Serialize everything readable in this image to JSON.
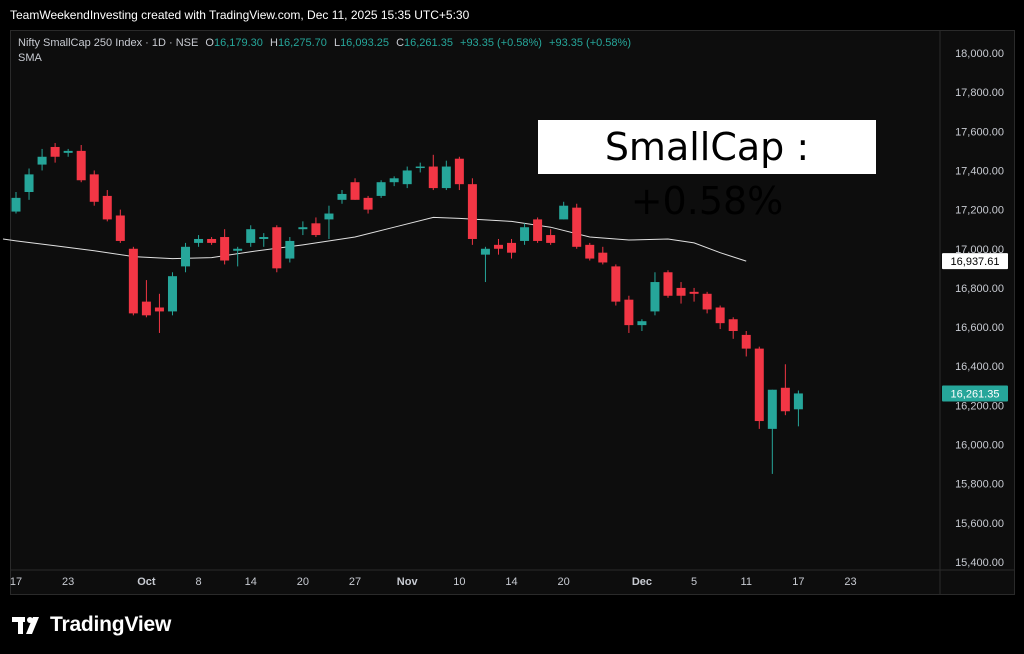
{
  "header": {
    "text": "TeamWeekendInvesting created with TradingView.com, Dec 11, 2025 15:35 UTC+5:30"
  },
  "legend": {
    "symbol": "Nifty SmallCap 250 Index · 1D · NSE",
    "o_label": "O",
    "o_value": "16,179.30",
    "h_label": "H",
    "h_value": "16,275.70",
    "l_label": "L",
    "l_value": "16,093.25",
    "c_label": "C",
    "c_value": "16,261.35",
    "change1": "+93.35 (+0.58%)",
    "change2": "+93.35 (+0.58%)",
    "indicator": "SMA"
  },
  "annotation": {
    "text": "SmallCap : +0.58%"
  },
  "footer": {
    "brand": "TradingView"
  },
  "colors": {
    "up": "#26a69a",
    "down": "#f23645",
    "sma": "#e0e0e0",
    "background": "#0d0d0d",
    "axis_text": "#c8cbd2"
  },
  "chart_data": {
    "type": "candlestick",
    "y_range": [
      15360,
      18100
    ],
    "y_ticks": [
      "18,000.00",
      "17,800.00",
      "17,600.00",
      "17,400.00",
      "17,200.00",
      "17,000.00",
      "16,800.00",
      "16,600.00",
      "16,400.00",
      "16,200.00",
      "16,000.00",
      "15,800.00",
      "15,600.00",
      "15,400.00"
    ],
    "y_tick_values": [
      18000,
      17800,
      17600,
      17400,
      17200,
      17000,
      16800,
      16600,
      16400,
      16200,
      16000,
      15800,
      15600,
      15400
    ],
    "x_ticks": [
      {
        "label": "17",
        "index": 0
      },
      {
        "label": "23",
        "index": 4
      },
      {
        "label": "Oct",
        "index": 10,
        "bold": true
      },
      {
        "label": "8",
        "index": 14
      },
      {
        "label": "14",
        "index": 18
      },
      {
        "label": "20",
        "index": 22
      },
      {
        "label": "27",
        "index": 26
      },
      {
        "label": "Nov",
        "index": 30,
        "bold": true
      },
      {
        "label": "10",
        "index": 34
      },
      {
        "label": "14",
        "index": 38
      },
      {
        "label": "20",
        "index": 42
      },
      {
        "label": "Dec",
        "index": 48,
        "bold": true
      },
      {
        "label": "5",
        "index": 52
      },
      {
        "label": "11",
        "index": 56
      },
      {
        "label": "17",
        "index": 60
      },
      {
        "label": "23",
        "index": 64
      }
    ],
    "candles": [
      {
        "o": 17190,
        "h": 17290,
        "l": 17180,
        "c": 17260
      },
      {
        "o": 17290,
        "h": 17410,
        "l": 17250,
        "c": 17380
      },
      {
        "o": 17430,
        "h": 17510,
        "l": 17400,
        "c": 17470
      },
      {
        "o": 17520,
        "h": 17540,
        "l": 17440,
        "c": 17470
      },
      {
        "o": 17490,
        "h": 17510,
        "l": 17470,
        "c": 17500
      },
      {
        "o": 17500,
        "h": 17530,
        "l": 17340,
        "c": 17350
      },
      {
        "o": 17380,
        "h": 17400,
        "l": 17220,
        "c": 17240
      },
      {
        "o": 17270,
        "h": 17300,
        "l": 17140,
        "c": 17150
      },
      {
        "o": 17170,
        "h": 17200,
        "l": 17030,
        "c": 17040
      },
      {
        "o": 17000,
        "h": 17010,
        "l": 16660,
        "c": 16670
      },
      {
        "o": 16730,
        "h": 16840,
        "l": 16650,
        "c": 16660
      },
      {
        "o": 16700,
        "h": 16770,
        "l": 16570,
        "c": 16680
      },
      {
        "o": 16680,
        "h": 16880,
        "l": 16660,
        "c": 16860
      },
      {
        "o": 16910,
        "h": 17030,
        "l": 16880,
        "c": 17010
      },
      {
        "o": 17030,
        "h": 17070,
        "l": 17010,
        "c": 17050
      },
      {
        "o": 17050,
        "h": 17060,
        "l": 17020,
        "c": 17030
      },
      {
        "o": 17060,
        "h": 17100,
        "l": 16920,
        "c": 16940
      },
      {
        "o": 16990,
        "h": 17010,
        "l": 16910,
        "c": 17000
      },
      {
        "o": 17030,
        "h": 17120,
        "l": 17010,
        "c": 17100
      },
      {
        "o": 17050,
        "h": 17080,
        "l": 17010,
        "c": 17060
      },
      {
        "o": 17110,
        "h": 17120,
        "l": 16880,
        "c": 16900
      },
      {
        "o": 16950,
        "h": 17060,
        "l": 16930,
        "c": 17040
      },
      {
        "o": 17100,
        "h": 17140,
        "l": 17070,
        "c": 17110
      },
      {
        "o": 17130,
        "h": 17160,
        "l": 17060,
        "c": 17070
      },
      {
        "o": 17150,
        "h": 17220,
        "l": 17050,
        "c": 17180
      },
      {
        "o": 17250,
        "h": 17300,
        "l": 17230,
        "c": 17280
      },
      {
        "o": 17340,
        "h": 17360,
        "l": 17250,
        "c": 17250
      },
      {
        "o": 17260,
        "h": 17270,
        "l": 17180,
        "c": 17200
      },
      {
        "o": 17270,
        "h": 17350,
        "l": 17260,
        "c": 17340
      },
      {
        "o": 17340,
        "h": 17370,
        "l": 17320,
        "c": 17360
      },
      {
        "o": 17330,
        "h": 17420,
        "l": 17310,
        "c": 17400
      },
      {
        "o": 17420,
        "h": 17440,
        "l": 17390,
        "c": 17420
      },
      {
        "o": 17420,
        "h": 17480,
        "l": 17300,
        "c": 17310
      },
      {
        "o": 17310,
        "h": 17450,
        "l": 17300,
        "c": 17420
      },
      {
        "o": 17460,
        "h": 17470,
        "l": 17300,
        "c": 17330
      },
      {
        "o": 17330,
        "h": 17360,
        "l": 17020,
        "c": 17050
      },
      {
        "o": 16970,
        "h": 17010,
        "l": 16830,
        "c": 17000
      },
      {
        "o": 17020,
        "h": 17050,
        "l": 16970,
        "c": 17000
      },
      {
        "o": 17030,
        "h": 17050,
        "l": 16950,
        "c": 16980
      },
      {
        "o": 17040,
        "h": 17130,
        "l": 17020,
        "c": 17110
      },
      {
        "o": 17150,
        "h": 17160,
        "l": 17030,
        "c": 17040
      },
      {
        "o": 17070,
        "h": 17100,
        "l": 17020,
        "c": 17030
      },
      {
        "o": 17150,
        "h": 17240,
        "l": 17150,
        "c": 17220
      },
      {
        "o": 17210,
        "h": 17230,
        "l": 17000,
        "c": 17010
      },
      {
        "o": 17020,
        "h": 17030,
        "l": 16940,
        "c": 16950
      },
      {
        "o": 16980,
        "h": 17010,
        "l": 16920,
        "c": 16930
      },
      {
        "o": 16910,
        "h": 16920,
        "l": 16710,
        "c": 16730
      },
      {
        "o": 16740,
        "h": 16760,
        "l": 16570,
        "c": 16610
      },
      {
        "o": 16610,
        "h": 16640,
        "l": 16580,
        "c": 16630
      },
      {
        "o": 16680,
        "h": 16880,
        "l": 16660,
        "c": 16830
      },
      {
        "o": 16880,
        "h": 16890,
        "l": 16750,
        "c": 16760
      },
      {
        "o": 16800,
        "h": 16830,
        "l": 16720,
        "c": 16760
      },
      {
        "o": 16780,
        "h": 16800,
        "l": 16730,
        "c": 16770
      },
      {
        "o": 16770,
        "h": 16780,
        "l": 16670,
        "c": 16690
      },
      {
        "o": 16700,
        "h": 16710,
        "l": 16590,
        "c": 16620
      },
      {
        "o": 16640,
        "h": 16650,
        "l": 16540,
        "c": 16580
      },
      {
        "o": 16560,
        "h": 16580,
        "l": 16450,
        "c": 16490
      },
      {
        "o": 16490,
        "h": 16500,
        "l": 16080,
        "c": 16120
      },
      {
        "o": 16080,
        "h": 16280,
        "l": 15850,
        "c": 16280
      },
      {
        "o": 16290,
        "h": 16410,
        "l": 16150,
        "c": 16170
      },
      {
        "o": 16180,
        "h": 16276,
        "l": 16093,
        "c": 16261
      }
    ],
    "sma": [
      {
        "i": -1,
        "v": 17050
      },
      {
        "i": 0,
        "v": 17040
      },
      {
        "i": 3,
        "v": 17015
      },
      {
        "i": 6,
        "v": 16990
      },
      {
        "i": 9,
        "v": 16960
      },
      {
        "i": 12,
        "v": 16950
      },
      {
        "i": 15,
        "v": 16955
      },
      {
        "i": 18,
        "v": 16985
      },
      {
        "i": 22,
        "v": 17020
      },
      {
        "i": 26,
        "v": 17060
      },
      {
        "i": 29,
        "v": 17110
      },
      {
        "i": 32,
        "v": 17160
      },
      {
        "i": 34,
        "v": 17155
      },
      {
        "i": 38,
        "v": 17140
      },
      {
        "i": 41,
        "v": 17110
      },
      {
        "i": 44,
        "v": 17060
      },
      {
        "i": 47,
        "v": 17045
      },
      {
        "i": 50,
        "v": 17050
      },
      {
        "i": 52,
        "v": 17030
      },
      {
        "i": 54,
        "v": 16980
      },
      {
        "i": 56,
        "v": 16937
      }
    ],
    "sma_label": "16,937.61",
    "last_price_label": "16,261.35"
  }
}
